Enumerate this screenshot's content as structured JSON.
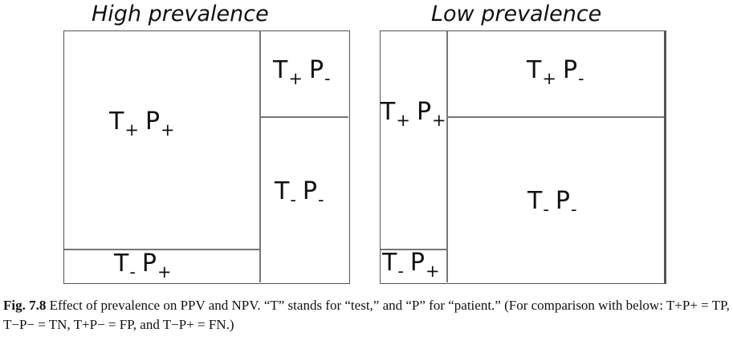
{
  "panels": {
    "high": {
      "title": "High prevalence",
      "cells": {
        "tp": [
          "T",
          "+",
          "P",
          "+"
        ],
        "fp": [
          "T",
          "+",
          "P",
          "-"
        ],
        "tn": [
          "T",
          "-",
          "P",
          "-"
        ],
        "fn": [
          "T",
          "-",
          "P",
          "+"
        ]
      }
    },
    "low": {
      "title": "Low prevalence",
      "cells": {
        "tp": [
          "T",
          "+",
          "P",
          "+"
        ],
        "fp": [
          "T",
          "+",
          "P",
          "-"
        ],
        "tn": [
          "T",
          "-",
          "P",
          "-"
        ],
        "fn": [
          "T",
          "-",
          "P",
          "+"
        ]
      }
    }
  },
  "caption": {
    "label": "Fig. 7.8",
    "text": "Effect of prevalence on PPV and NPV. “T” stands for “test,” and “P” for “patient.” (For comparison with below: T+P+ = TP, T−P− = TN, T+P− = FP, and T−P+ = FN.)"
  }
}
